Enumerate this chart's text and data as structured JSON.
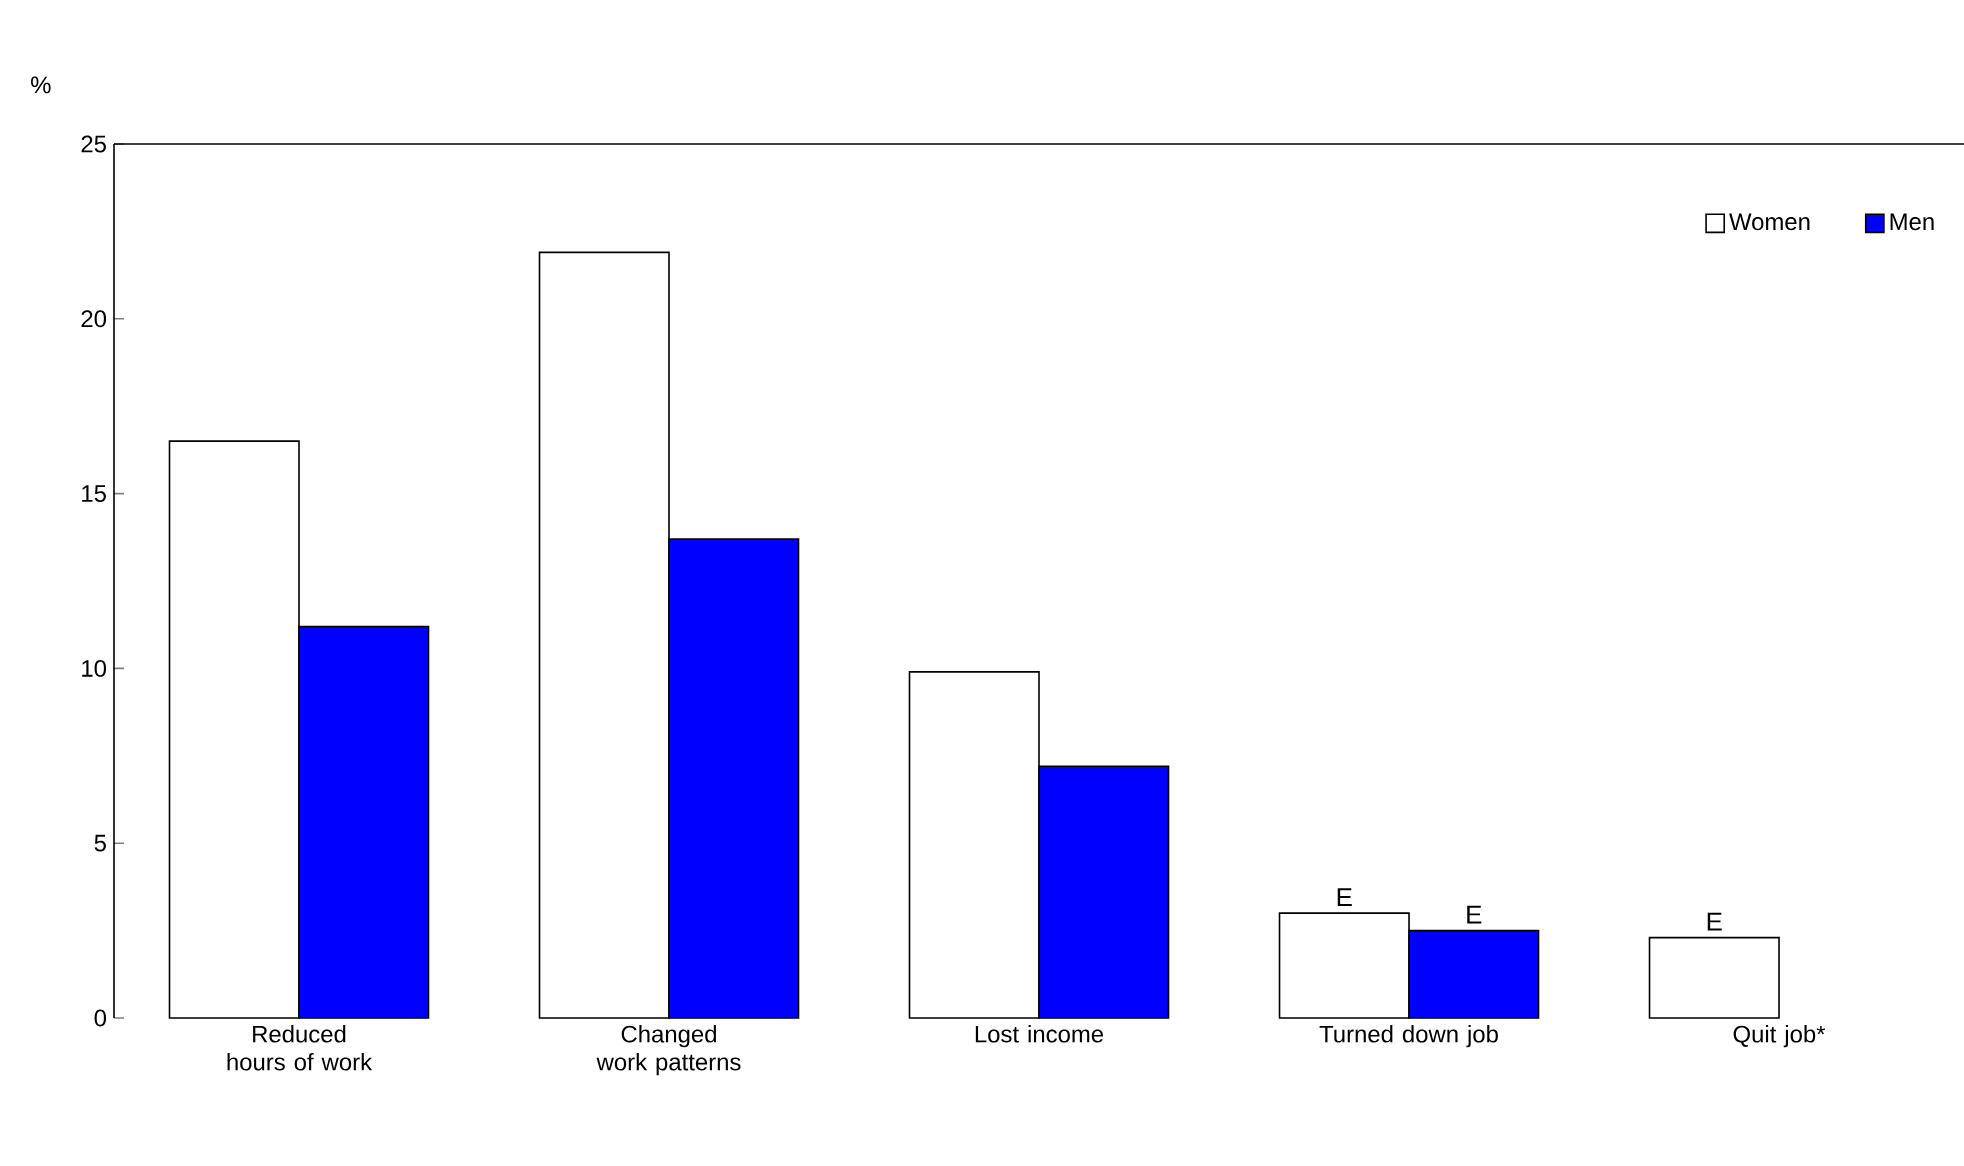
{
  "chart_data": {
    "type": "bar",
    "ylabel": "%",
    "categories": [
      "Reduced hours of work",
      "Changed work patterns",
      "Lost income",
      "Turned down job",
      "Quit job*"
    ],
    "series": [
      {
        "name": "Women",
        "color": "#ffffff",
        "values": [
          16.5,
          21.9,
          9.9,
          3.0,
          2.3
        ],
        "value_labels": [
          null,
          null,
          null,
          "E",
          "E"
        ]
      },
      {
        "name": "Men",
        "color": "#0000ff",
        "values": [
          11.2,
          13.7,
          7.2,
          2.5,
          null
        ],
        "value_labels": [
          null,
          null,
          null,
          "E",
          null
        ]
      }
    ],
    "ylim": [
      0,
      25
    ],
    "yticks": [
      0,
      5,
      10,
      15,
      20,
      25
    ],
    "grid": false,
    "legend": "top right"
  }
}
